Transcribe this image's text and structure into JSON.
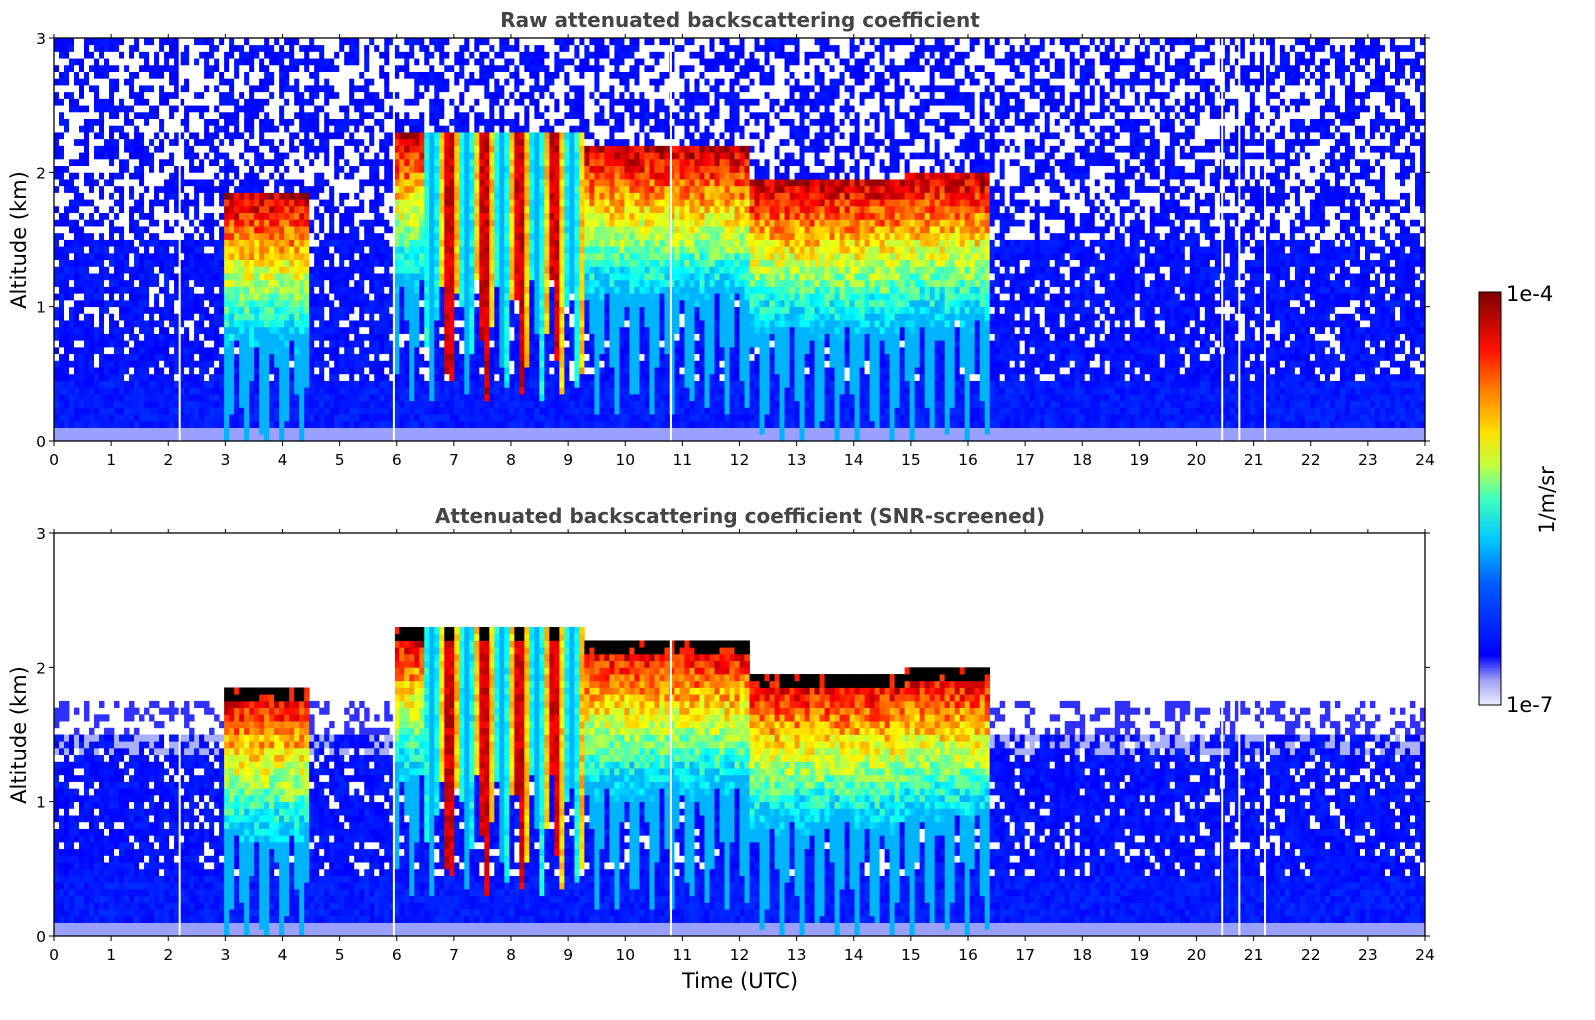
{
  "chart_data": [
    {
      "type": "heatmap",
      "title": "Raw attenuated backscattering coefficient",
      "xlabel": "",
      "ylabel": "Altitude (km)",
      "xlim": [
        0,
        24
      ],
      "ylim": [
        0,
        3
      ],
      "x_ticks": [
        "0",
        "1",
        "2",
        "3",
        "4",
        "5",
        "6",
        "7",
        "8",
        "9",
        "10",
        "11",
        "12",
        "13",
        "14",
        "15",
        "16",
        "17",
        "18",
        "19",
        "20",
        "21",
        "22",
        "23",
        "24"
      ],
      "y_ticks": [
        "0",
        "1",
        "2",
        "3"
      ],
      "cloud_tops_km": [
        {
          "start": 2.95,
          "end": 4.5,
          "top_km": 1.85
        },
        {
          "start": 5.95,
          "end": 9.3,
          "top_km": 2.3
        },
        {
          "start": 9.3,
          "end": 12.2,
          "top_km": 2.2
        },
        {
          "start": 12.2,
          "end": 14.9,
          "top_km": 1.95
        },
        {
          "start": 14.9,
          "end": 16.4,
          "top_km": 2.0
        }
      ],
      "data_gaps_utc": [
        2.2,
        5.95,
        10.8,
        20.45,
        20.75,
        21.2
      ]
    },
    {
      "type": "heatmap",
      "title": "Attenuated backscattering coefficient (SNR-screened)",
      "xlabel": "Time (UTC)",
      "ylabel": "Altitude (km)",
      "xlim": [
        0,
        24
      ],
      "ylim": [
        0,
        3
      ],
      "x_ticks": [
        "0",
        "1",
        "2",
        "3",
        "4",
        "5",
        "6",
        "7",
        "8",
        "9",
        "10",
        "11",
        "12",
        "13",
        "14",
        "15",
        "16",
        "17",
        "18",
        "19",
        "20",
        "21",
        "22",
        "23",
        "24"
      ],
      "y_ticks": [
        "0",
        "1",
        "2",
        "3"
      ],
      "cloud_tops_km": [
        {
          "start": 2.95,
          "end": 4.5,
          "top_km": 1.85
        },
        {
          "start": 5.95,
          "end": 9.3,
          "top_km": 2.3
        },
        {
          "start": 9.3,
          "end": 12.2,
          "top_km": 2.2
        },
        {
          "start": 12.2,
          "end": 14.9,
          "top_km": 1.95
        },
        {
          "start": 14.9,
          "end": 16.4,
          "top_km": 2.0
        }
      ],
      "data_gaps_utc": [
        2.2,
        5.95,
        10.8,
        20.45,
        20.75,
        21.2
      ]
    }
  ],
  "colorbar": {
    "label": "1/m/sr",
    "max_label": "1e-4",
    "min_label": "1e-7",
    "scale": "log",
    "colormap": [
      "#7f0000",
      "#ff0000",
      "#ff8000",
      "#ffff00",
      "#80ff80",
      "#00ffff",
      "#0080ff",
      "#0000ff",
      "#c8c8f0"
    ]
  }
}
